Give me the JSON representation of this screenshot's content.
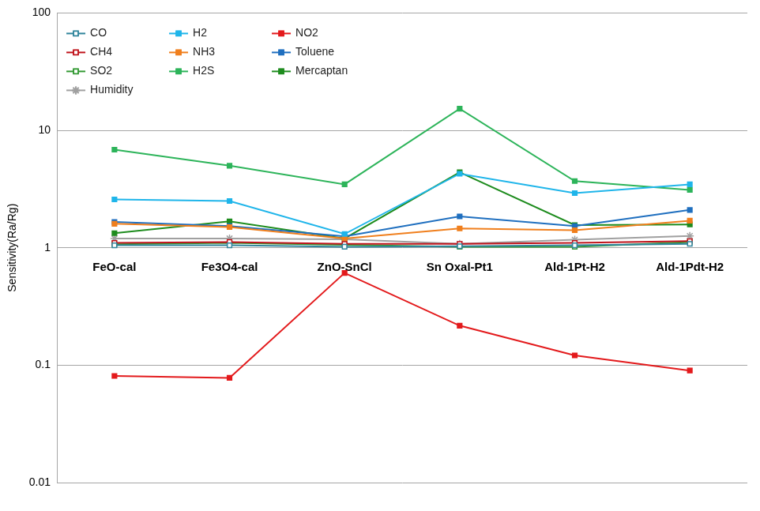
{
  "chart_data": {
    "type": "line",
    "y_label": "Sensitivity(Ra/Rg)",
    "categories": [
      "FeO-cal",
      "Fe3O4-cal",
      "ZnO-SnCl",
      "Sn Oxal-Pt1",
      "Ald-1Pt-H2",
      "Ald-1Pdt-H2"
    ],
    "log": "y",
    "grid": true,
    "legend": "top-left",
    "ylim": [
      0.01,
      100
    ],
    "yticks": [
      0.01,
      0.1,
      1,
      10,
      100
    ],
    "series": [
      {
        "name": "CO",
        "color": "#31859c",
        "marker": "open-square",
        "values": [
          1.05,
          1.05,
          1.02,
          1.03,
          1.05,
          1.08
        ]
      },
      {
        "name": "H2",
        "color": "#1fb5ea",
        "marker": "square",
        "values": [
          2.58,
          2.5,
          1.31,
          4.27,
          2.92,
          3.47
        ]
      },
      {
        "name": "NO2",
        "color": "#e31a1c",
        "marker": "square",
        "values": [
          0.081,
          0.078,
          0.61,
          0.217,
          0.121,
          0.09
        ]
      },
      {
        "name": "CH4",
        "color": "#c0141c",
        "marker": "open-square",
        "values": [
          1.1,
          1.12,
          1.08,
          1.08,
          1.1,
          1.14
        ]
      },
      {
        "name": "NH3",
        "color": "#f07f1d",
        "marker": "square",
        "values": [
          1.6,
          1.5,
          1.2,
          1.46,
          1.41,
          1.7
        ]
      },
      {
        "name": "Toluene",
        "color": "#1f6fbf",
        "marker": "square",
        "values": [
          1.66,
          1.53,
          1.25,
          1.85,
          1.53,
          2.1
        ]
      },
      {
        "name": "SO2",
        "color": "#339933",
        "marker": "open-square",
        "values": [
          1.07,
          1.1,
          1.06,
          1.02,
          1.02,
          1.12
        ]
      },
      {
        "name": "H2S",
        "color": "#2db45a",
        "marker": "square",
        "values": [
          6.85,
          5.0,
          3.47,
          15.3,
          3.7,
          3.11
        ]
      },
      {
        "name": "Mercaptan",
        "color": "#1e8c1e",
        "marker": "square",
        "values": [
          1.33,
          1.68,
          1.2,
          4.4,
          1.56,
          1.58
        ]
      },
      {
        "name": "Humidity",
        "color": "#a0a0a0",
        "marker": "star",
        "values": [
          1.2,
          1.2,
          1.18,
          1.08,
          1.17,
          1.26
        ]
      }
    ]
  }
}
